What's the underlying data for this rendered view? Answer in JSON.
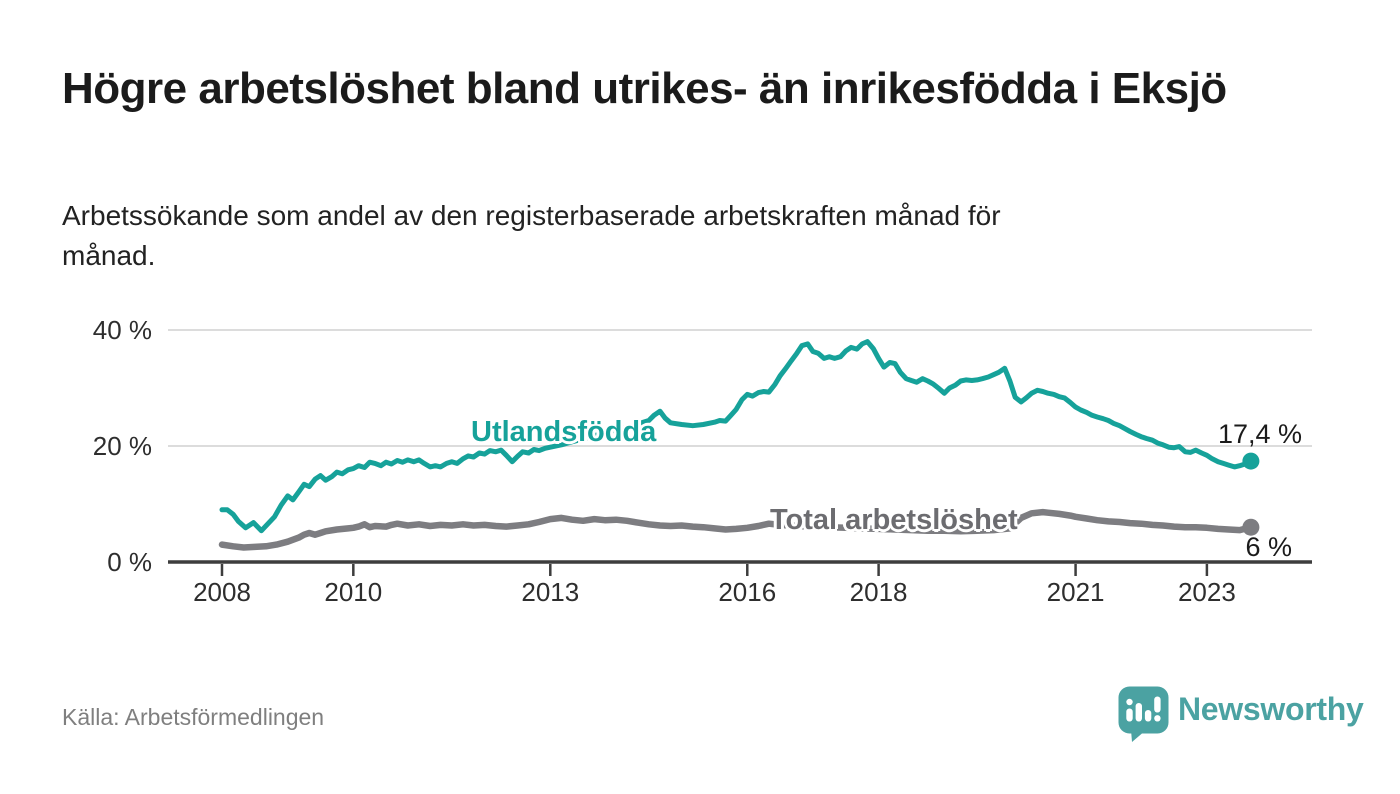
{
  "header": {
    "title": "Högre arbetslöshet bland utrikes- än inrikesfödda i Eksjö",
    "subtitle": "Arbetssökande som andel av den registerbaserade arbetskraften månad för månad."
  },
  "chart_data": {
    "type": "line",
    "title": "Högre arbetslöshet bland utrikes- än inrikesfödda i Eksjö",
    "xlabel": "",
    "ylabel": "",
    "x_range": [
      2008.0,
      2023.67
    ],
    "ylim": [
      0,
      44
    ],
    "grid": "horizontal",
    "gridline_color": "#dcdcdc",
    "axis_color": "#3d3d3d",
    "y_ticks": [
      {
        "value": 40,
        "label": "40 %"
      },
      {
        "value": 20,
        "label": "20 %"
      },
      {
        "value": 0,
        "label": "0 %"
      }
    ],
    "x_ticks": [
      {
        "year": 2008,
        "label": "2008"
      },
      {
        "year": 2010,
        "label": "2010"
      },
      {
        "year": 2013,
        "label": "2013"
      },
      {
        "year": 2016,
        "label": "2016"
      },
      {
        "year": 2018,
        "label": "2018"
      },
      {
        "year": 2021,
        "label": "2021"
      },
      {
        "year": 2023,
        "label": "2023"
      }
    ],
    "series": [
      {
        "name": "Utlandsfödda",
        "color": "#16a29a",
        "label_color": "#16a29a",
        "line_width": 5,
        "end_label": "17,4 %",
        "end_value": 17.4,
        "points": [
          [
            2008.0,
            9.0
          ],
          [
            2008.08,
            9.0
          ],
          [
            2008.17,
            8.2
          ],
          [
            2008.25,
            7.0
          ],
          [
            2008.36,
            5.9
          ],
          [
            2008.48,
            6.8
          ],
          [
            2008.6,
            5.4
          ],
          [
            2008.7,
            6.6
          ],
          [
            2008.8,
            7.8
          ],
          [
            2008.9,
            9.8
          ],
          [
            2009.0,
            11.4
          ],
          [
            2009.08,
            10.7
          ],
          [
            2009.17,
            12.1
          ],
          [
            2009.25,
            13.4
          ],
          [
            2009.33,
            13.0
          ],
          [
            2009.42,
            14.3
          ],
          [
            2009.5,
            14.9
          ],
          [
            2009.58,
            14.1
          ],
          [
            2009.67,
            14.7
          ],
          [
            2009.75,
            15.5
          ],
          [
            2009.83,
            15.2
          ],
          [
            2009.92,
            15.9
          ],
          [
            2010.0,
            16.1
          ],
          [
            2010.08,
            16.6
          ],
          [
            2010.17,
            16.3
          ],
          [
            2010.25,
            17.2
          ],
          [
            2010.33,
            17.0
          ],
          [
            2010.42,
            16.6
          ],
          [
            2010.5,
            17.2
          ],
          [
            2010.58,
            16.9
          ],
          [
            2010.67,
            17.5
          ],
          [
            2010.75,
            17.2
          ],
          [
            2010.83,
            17.6
          ],
          [
            2010.92,
            17.3
          ],
          [
            2011.0,
            17.6
          ],
          [
            2011.08,
            17.0
          ],
          [
            2011.17,
            16.4
          ],
          [
            2011.25,
            16.6
          ],
          [
            2011.33,
            16.4
          ],
          [
            2011.42,
            17.0
          ],
          [
            2011.5,
            17.3
          ],
          [
            2011.58,
            17.0
          ],
          [
            2011.67,
            17.8
          ],
          [
            2011.75,
            18.3
          ],
          [
            2011.83,
            18.1
          ],
          [
            2011.92,
            18.8
          ],
          [
            2012.0,
            18.6
          ],
          [
            2012.08,
            19.2
          ],
          [
            2012.17,
            19.0
          ],
          [
            2012.25,
            19.3
          ],
          [
            2012.33,
            18.4
          ],
          [
            2012.42,
            17.3
          ],
          [
            2012.5,
            18.2
          ],
          [
            2012.58,
            19.0
          ],
          [
            2012.67,
            18.8
          ],
          [
            2012.75,
            19.4
          ],
          [
            2012.83,
            19.2
          ],
          [
            2012.92,
            19.6
          ],
          [
            2013.0,
            19.8
          ],
          [
            2013.17,
            20.2
          ],
          [
            2013.33,
            20.7
          ],
          [
            2013.5,
            21.2
          ],
          [
            2013.67,
            21.8
          ],
          [
            2013.83,
            22.3
          ],
          [
            2014.0,
            22.8
          ],
          [
            2014.17,
            23.3
          ],
          [
            2014.33,
            23.8
          ],
          [
            2014.5,
            24.4
          ],
          [
            2014.58,
            25.3
          ],
          [
            2014.67,
            26.0
          ],
          [
            2014.75,
            24.8
          ],
          [
            2014.83,
            24.0
          ],
          [
            2015.0,
            23.7
          ],
          [
            2015.17,
            23.5
          ],
          [
            2015.33,
            23.7
          ],
          [
            2015.5,
            24.1
          ],
          [
            2015.58,
            24.4
          ],
          [
            2015.67,
            24.3
          ],
          [
            2015.75,
            25.3
          ],
          [
            2015.83,
            26.3
          ],
          [
            2015.92,
            28.0
          ],
          [
            2016.0,
            28.9
          ],
          [
            2016.08,
            28.6
          ],
          [
            2016.17,
            29.2
          ],
          [
            2016.25,
            29.4
          ],
          [
            2016.33,
            29.3
          ],
          [
            2016.42,
            30.6
          ],
          [
            2016.5,
            32.1
          ],
          [
            2016.58,
            33.3
          ],
          [
            2016.67,
            34.7
          ],
          [
            2016.75,
            35.9
          ],
          [
            2016.83,
            37.3
          ],
          [
            2016.92,
            37.6
          ],
          [
            2017.0,
            36.3
          ],
          [
            2017.08,
            36.0
          ],
          [
            2017.17,
            35.1
          ],
          [
            2017.25,
            35.4
          ],
          [
            2017.33,
            35.1
          ],
          [
            2017.42,
            35.4
          ],
          [
            2017.5,
            36.4
          ],
          [
            2017.58,
            37.0
          ],
          [
            2017.67,
            36.7
          ],
          [
            2017.75,
            37.6
          ],
          [
            2017.83,
            38.0
          ],
          [
            2017.92,
            36.8
          ],
          [
            2018.0,
            35.1
          ],
          [
            2018.08,
            33.6
          ],
          [
            2018.17,
            34.4
          ],
          [
            2018.25,
            34.2
          ],
          [
            2018.33,
            32.7
          ],
          [
            2018.42,
            31.6
          ],
          [
            2018.5,
            31.3
          ],
          [
            2018.58,
            31.0
          ],
          [
            2018.67,
            31.6
          ],
          [
            2018.75,
            31.2
          ],
          [
            2018.83,
            30.7
          ],
          [
            2018.92,
            29.9
          ],
          [
            2019.0,
            29.1
          ],
          [
            2019.08,
            30.0
          ],
          [
            2019.17,
            30.5
          ],
          [
            2019.25,
            31.2
          ],
          [
            2019.33,
            31.4
          ],
          [
            2019.42,
            31.3
          ],
          [
            2019.5,
            31.4
          ],
          [
            2019.58,
            31.6
          ],
          [
            2019.67,
            31.9
          ],
          [
            2019.75,
            32.3
          ],
          [
            2019.83,
            32.7
          ],
          [
            2019.92,
            33.4
          ],
          [
            2020.0,
            31.2
          ],
          [
            2020.08,
            28.4
          ],
          [
            2020.17,
            27.6
          ],
          [
            2020.25,
            28.3
          ],
          [
            2020.33,
            29.1
          ],
          [
            2020.42,
            29.6
          ],
          [
            2020.5,
            29.4
          ],
          [
            2020.58,
            29.1
          ],
          [
            2020.67,
            28.9
          ],
          [
            2020.75,
            28.5
          ],
          [
            2020.83,
            28.3
          ],
          [
            2020.92,
            27.5
          ],
          [
            2021.0,
            26.7
          ],
          [
            2021.08,
            26.2
          ],
          [
            2021.17,
            25.8
          ],
          [
            2021.25,
            25.3
          ],
          [
            2021.33,
            25.0
          ],
          [
            2021.42,
            24.7
          ],
          [
            2021.5,
            24.4
          ],
          [
            2021.58,
            23.9
          ],
          [
            2021.67,
            23.5
          ],
          [
            2021.75,
            23.0
          ],
          [
            2021.83,
            22.5
          ],
          [
            2021.92,
            22.0
          ],
          [
            2022.0,
            21.6
          ],
          [
            2022.08,
            21.3
          ],
          [
            2022.17,
            21.0
          ],
          [
            2022.25,
            20.5
          ],
          [
            2022.33,
            20.2
          ],
          [
            2022.42,
            19.8
          ],
          [
            2022.5,
            19.7
          ],
          [
            2022.58,
            19.9
          ],
          [
            2022.67,
            19.0
          ],
          [
            2022.75,
            18.9
          ],
          [
            2022.83,
            19.3
          ],
          [
            2022.92,
            18.8
          ],
          [
            2023.0,
            18.4
          ],
          [
            2023.08,
            17.8
          ],
          [
            2023.17,
            17.3
          ],
          [
            2023.25,
            17.0
          ],
          [
            2023.33,
            16.7
          ],
          [
            2023.42,
            16.4
          ],
          [
            2023.5,
            16.6
          ],
          [
            2023.58,
            16.9
          ],
          [
            2023.67,
            17.4
          ]
        ]
      },
      {
        "name": "Total arbetslöshet",
        "color": "#7d7d81",
        "label_color": "#6c6c70",
        "line_width": 6.5,
        "end_label": "6 %",
        "end_value": 6.0,
        "points": [
          [
            2008.0,
            3.0
          ],
          [
            2008.17,
            2.7
          ],
          [
            2008.33,
            2.5
          ],
          [
            2008.5,
            2.6
          ],
          [
            2008.67,
            2.7
          ],
          [
            2008.83,
            3.0
          ],
          [
            2009.0,
            3.5
          ],
          [
            2009.17,
            4.2
          ],
          [
            2009.25,
            4.7
          ],
          [
            2009.33,
            5.0
          ],
          [
            2009.42,
            4.7
          ],
          [
            2009.5,
            5.0
          ],
          [
            2009.58,
            5.3
          ],
          [
            2009.75,
            5.6
          ],
          [
            2009.92,
            5.8
          ],
          [
            2010.0,
            5.9
          ],
          [
            2010.08,
            6.1
          ],
          [
            2010.17,
            6.5
          ],
          [
            2010.25,
            6.0
          ],
          [
            2010.33,
            6.2
          ],
          [
            2010.5,
            6.1
          ],
          [
            2010.58,
            6.4
          ],
          [
            2010.67,
            6.6
          ],
          [
            2010.83,
            6.3
          ],
          [
            2011.0,
            6.5
          ],
          [
            2011.17,
            6.2
          ],
          [
            2011.33,
            6.4
          ],
          [
            2011.5,
            6.3
          ],
          [
            2011.67,
            6.5
          ],
          [
            2011.83,
            6.3
          ],
          [
            2012.0,
            6.4
          ],
          [
            2012.17,
            6.2
          ],
          [
            2012.33,
            6.1
          ],
          [
            2012.5,
            6.3
          ],
          [
            2012.67,
            6.5
          ],
          [
            2012.83,
            6.9
          ],
          [
            2013.0,
            7.4
          ],
          [
            2013.17,
            7.6
          ],
          [
            2013.33,
            7.3
          ],
          [
            2013.5,
            7.1
          ],
          [
            2013.67,
            7.4
          ],
          [
            2013.83,
            7.2
          ],
          [
            2014.0,
            7.3
          ],
          [
            2014.17,
            7.1
          ],
          [
            2014.33,
            6.8
          ],
          [
            2014.5,
            6.5
          ],
          [
            2014.67,
            6.3
          ],
          [
            2014.83,
            6.2
          ],
          [
            2015.0,
            6.3
          ],
          [
            2015.17,
            6.1
          ],
          [
            2015.33,
            6.0
          ],
          [
            2015.5,
            5.8
          ],
          [
            2015.67,
            5.6
          ],
          [
            2015.83,
            5.7
          ],
          [
            2016.0,
            5.9
          ],
          [
            2016.17,
            6.2
          ],
          [
            2016.33,
            6.6
          ],
          [
            2016.5,
            6.4
          ],
          [
            2016.75,
            6.2
          ],
          [
            2017.0,
            6.1
          ],
          [
            2017.25,
            6.0
          ],
          [
            2017.5,
            5.9
          ],
          [
            2017.75,
            5.8
          ],
          [
            2018.0,
            5.7
          ],
          [
            2018.25,
            5.6
          ],
          [
            2018.5,
            5.5
          ],
          [
            2018.75,
            5.4
          ],
          [
            2019.0,
            5.4
          ],
          [
            2019.25,
            5.3
          ],
          [
            2019.5,
            5.4
          ],
          [
            2019.75,
            5.5
          ],
          [
            2020.0,
            5.8
          ],
          [
            2020.17,
            7.6
          ],
          [
            2020.33,
            8.4
          ],
          [
            2020.5,
            8.6
          ],
          [
            2020.58,
            8.5
          ],
          [
            2020.75,
            8.3
          ],
          [
            2020.92,
            8.0
          ],
          [
            2021.0,
            7.8
          ],
          [
            2021.17,
            7.5
          ],
          [
            2021.33,
            7.2
          ],
          [
            2021.5,
            7.0
          ],
          [
            2021.67,
            6.9
          ],
          [
            2021.83,
            6.7
          ],
          [
            2022.0,
            6.6
          ],
          [
            2022.17,
            6.4
          ],
          [
            2022.33,
            6.3
          ],
          [
            2022.5,
            6.1
          ],
          [
            2022.67,
            6.0
          ],
          [
            2022.83,
            6.0
          ],
          [
            2023.0,
            5.9
          ],
          [
            2023.17,
            5.7
          ],
          [
            2023.33,
            5.6
          ],
          [
            2023.5,
            5.5
          ],
          [
            2023.67,
            6.0
          ]
        ]
      }
    ],
    "legend_position": "inline-labels"
  },
  "footer": {
    "source": "Källa: Arbetsförmedlingen",
    "logo_text": "Newsworthy",
    "logo_color": "#4ba2a2"
  }
}
